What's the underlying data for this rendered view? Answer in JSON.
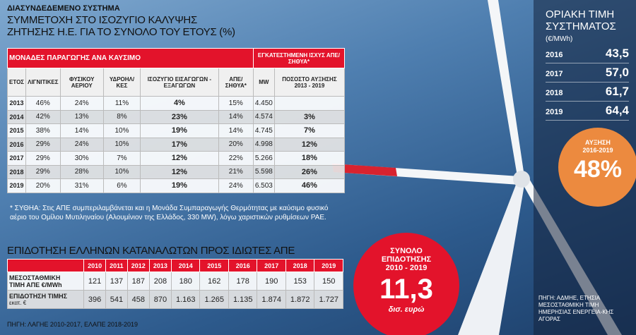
{
  "header": {
    "kicker": "ΔΙΑΣΥΝΔΕΔΕΜΕΝΟ ΣΥΣΤΗΜΑ",
    "title_lines": [
      "ΣΥΜΜΕΤΟΧΗ ΣΤΟ ΙΣΟΖΥΓΙΟ ΚΑΛΥΨΗΣ",
      "ΖΗΤΗΣΗΣ Η.Ε. ΓΙΑ ΤΟ ΣΥΝΟΛΟ ΤΟΥ ΕΤΟΥΣ (%)"
    ]
  },
  "table": {
    "group_headers": [
      "ΜΟΝΑΔΕΣ ΠΑΡΑΓΩΓΗΣ ΑΝΑ ΚΑΥΣΙΜΟ",
      "ΕΓΚΑΤΕΣΤΗΜΕΝΗ ΙΣΧΥΣ ΑΠΕ/ΣΗΘΥΑ*"
    ],
    "columns": [
      "ΕΤΟΣ",
      "ΛΙΓΝΙΤΙΚΕΣ",
      "ΦΥΣΙΚΟΥ ΑΕΡΙΟΥ",
      "ΥΔΡΟΗΛ/ ΚΕΣ",
      "ΙΣΟΖΥΓΙΟ ΕΙΣΑΓΩΓΩΝ - ΕΞΑΓΩΓΩΝ",
      "ΑΠΕ/ ΣΗΘΥΑ*",
      "MW",
      "ΠΟΣΟΣΤΟ ΑΥΞΗΣΗΣ 2013 - 2019"
    ],
    "rows": [
      [
        "2013",
        "46%",
        "24%",
        "11%",
        "4%",
        "15%",
        "4.450",
        null
      ],
      [
        "2014",
        "42%",
        "13%",
        "8%",
        "23%",
        "14%",
        "4.574",
        "3%"
      ],
      [
        "2015",
        "38%",
        "14%",
        "10%",
        "19%",
        "14%",
        "4.745",
        "7%"
      ],
      [
        "2016",
        "29%",
        "24%",
        "10%",
        "17%",
        "20%",
        "4.998",
        "12%"
      ],
      [
        "2017",
        "29%",
        "30%",
        "7%",
        "12%",
        "22%",
        "5.266",
        "18%"
      ],
      [
        "2018",
        "29%",
        "28%",
        "10%",
        "12%",
        "21%",
        "5.598",
        "26%"
      ],
      [
        "2019",
        "20%",
        "31%",
        "6%",
        "19%",
        "24%",
        "6.503",
        "46%"
      ]
    ]
  },
  "footnote": "* ΣΥΘΗΑ: Στις ΑΠΕ συμπεριλαμβάνεται και η Μονάδα Συμπαραγωγής Θερμότητας με καύσιμο φυσικό αέριο του Ομίλου Μυτιληναίου (Αλουμίνιον της Ελλάδος, 330 MW), λόγω χαριστικών ρυθμίσεων ΡΑΕ.",
  "subsidy": {
    "title": "ΕΠΙΔΟΤΗΣΗ ΕΛΛΗΝΩΝ ΚΑΤΑΝΑΛΩΤΩΝ ΠΡΟΣ ΙΔΙΩΤΕΣ ΑΠΕ",
    "years": [
      "2010",
      "2011",
      "2012",
      "2013",
      "2014",
      "2015",
      "2016",
      "2017",
      "2018",
      "2019"
    ],
    "rows": [
      {
        "label": [
          "ΜΕΣΟΣΤΑΘΜΙΚΗ",
          "ΤΙΜΗ ΑΠΕ €/MWh"
        ],
        "values": [
          "121",
          "137",
          "187",
          "208",
          "180",
          "162",
          "178",
          "190",
          "153",
          "150"
        ]
      },
      {
        "label": [
          "ΕΠΙΔΟΤΗΣΗ ΤΙΜΗΣ",
          "εκατ. €"
        ],
        "values": [
          "396",
          "541",
          "458",
          "870",
          "1.163",
          "1.265",
          "1.135",
          "1.874",
          "1.872",
          "1.727"
        ]
      }
    ],
    "source": "ΠΗΓΗ: ΛΑΓΗΕ 2010-2017, ΕΛΑΠΕ 2018-2019"
  },
  "total": {
    "title": [
      "ΣΥΝΟΛΟ",
      "ΕΠΙΔΟΤΗΣΗΣ",
      "2010 - 2019"
    ],
    "value": "11,3",
    "unit": "δισ. ευρώ"
  },
  "marginal_price": {
    "title": [
      "ΟΡΙΑΚΗ ΤΙΜΗ",
      "ΣΥΣΤΗΜΑΤΟΣ"
    ],
    "unit": "(€/MWh)",
    "rows": [
      [
        "2016",
        "43,5"
      ],
      [
        "2017",
        "57,0"
      ],
      [
        "2018",
        "61,7"
      ],
      [
        "2019",
        "64,4"
      ]
    ],
    "source": "ΠΗΓΗ: ΑΔΜΗΕ, ΕΤΗΣΙΑ ΜΕΣΟΣΤΑΘΜΙΚΗ ΤΙΜΗ ΗΜΕΡΗΣΙΑΣ ΕΝΕΡΓΕΙΑ-ΚΗΣ ΑΓΟΡΑΣ"
  },
  "increase": {
    "label": [
      "ΑΥΞΗΣΗ",
      "2016-2019"
    ],
    "value": "48%"
  }
}
